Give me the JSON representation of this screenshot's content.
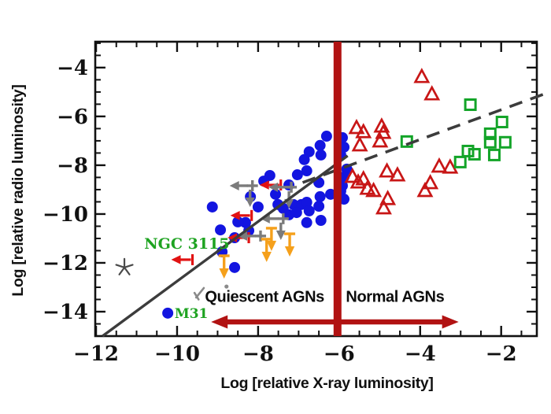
{
  "axes": {
    "x": {
      "label": "Log [relative X-ray luminosity]",
      "range": [
        -12.02,
        -1.12
      ],
      "major_ticks": [
        -12,
        -10,
        -8,
        -6,
        -4,
        -2
      ],
      "minor_step": 0.5
    },
    "y": {
      "label": "Log [relative radio luminosity]",
      "range": [
        -15.0,
        -2.94
      ],
      "major_ticks": [
        -4,
        -6,
        -8,
        -10,
        -12,
        -14
      ],
      "minor_step": 0.5
    }
  },
  "colors": {
    "blue_points": "#1315e0",
    "red_triangles": "#c81616",
    "green_squares": "#13a428",
    "orange_limits": "#f5a01b",
    "gray_limits": "#7b7b7b",
    "fit_line": "#3c3c3c",
    "divider_red": "#b11212",
    "label_green": "#1ea321",
    "star_gray": "#4a4a4a",
    "text_black": "#0d0d0d"
  },
  "chart_data": {
    "type": "scatter",
    "title": "",
    "xlabel": "Log [relative X-ray luminosity]",
    "ylabel": "Log [relative radio luminosity]",
    "xlim": [
      -12.02,
      -1.12
    ],
    "ylim": [
      -15.0,
      -2.94
    ],
    "grid": false,
    "series": [
      {
        "name": "quiescent-nuclei-blue-filled-circles",
        "marker": "circle-filled",
        "color": "#1315e0",
        "points": [
          [
            -6.31,
            -6.81
          ],
          [
            -5.92,
            -6.87
          ],
          [
            -5.88,
            -7.26
          ],
          [
            -6.47,
            -7.19
          ],
          [
            -6.74,
            -7.45
          ],
          [
            -6.45,
            -7.58
          ],
          [
            -6.86,
            -7.77
          ],
          [
            -6.8,
            -8.23
          ],
          [
            -7.03,
            -8.39
          ],
          [
            -7.71,
            -8.42
          ],
          [
            -7.86,
            -8.65
          ],
          [
            -7.24,
            -8.81
          ],
          [
            -6.5,
            -8.71
          ],
          [
            -8.19,
            -9.29
          ],
          [
            -7.57,
            -9.19
          ],
          [
            -7.51,
            -9.61
          ],
          [
            -7.38,
            -9.77
          ],
          [
            -7.13,
            -9.61
          ],
          [
            -6.93,
            -9.61
          ],
          [
            -6.8,
            -9.52
          ],
          [
            -6.47,
            -9.29
          ],
          [
            -6.21,
            -9.19
          ],
          [
            -5.96,
            -9.06
          ],
          [
            -5.88,
            -9.39
          ],
          [
            -6.74,
            -9.87
          ],
          [
            -7.05,
            -9.94
          ],
          [
            -7.24,
            -10.03
          ],
          [
            -8.31,
            -10.35
          ],
          [
            -6.8,
            -10.35
          ],
          [
            -9.13,
            -9.71
          ],
          [
            -8.0,
            -9.71
          ],
          [
            -8.5,
            -10.32
          ],
          [
            -8.23,
            -10.68
          ],
          [
            -8.93,
            -10.65
          ],
          [
            -8.58,
            -10.97
          ],
          [
            -8.89,
            -11.55
          ],
          [
            -6.5,
            -9.68
          ],
          [
            -6.45,
            -10.26
          ],
          [
            -8.58,
            -12.19
          ],
          [
            -5.96,
            -7.58
          ],
          [
            -5.81,
            -8.16
          ],
          [
            -5.88,
            -8.48
          ],
          [
            -5.92,
            -8.84
          ],
          [
            -10.23,
            -14.06
          ]
        ]
      },
      {
        "name": "normal-agn-red-open-triangles",
        "marker": "triangle-open",
        "color": "#c81616",
        "points": [
          [
            -3.96,
            -4.39
          ],
          [
            -3.71,
            -5.1
          ],
          [
            -5.57,
            -6.48
          ],
          [
            -5.4,
            -6.65
          ],
          [
            -5.49,
            -7.19
          ],
          [
            -4.95,
            -6.42
          ],
          [
            -4.91,
            -6.68
          ],
          [
            -4.99,
            -7.03
          ],
          [
            -5.67,
            -8.48
          ],
          [
            -5.53,
            -8.71
          ],
          [
            -5.4,
            -8.58
          ],
          [
            -5.3,
            -8.97
          ],
          [
            -5.15,
            -9.06
          ],
          [
            -4.82,
            -8.26
          ],
          [
            -4.56,
            -8.42
          ],
          [
            -4.8,
            -9.39
          ],
          [
            -4.9,
            -9.77
          ],
          [
            -3.53,
            -8.06
          ],
          [
            -3.75,
            -8.74
          ],
          [
            -3.88,
            -9.06
          ],
          [
            -3.26,
            -8.1
          ]
        ]
      },
      {
        "name": "agn-green-open-squares",
        "marker": "square-open",
        "color": "#13a428",
        "points": [
          [
            -4.33,
            -7.03
          ],
          [
            -2.76,
            -5.52
          ],
          [
            -1.98,
            -6.23
          ],
          [
            -2.27,
            -6.71
          ],
          [
            -2.27,
            -7.06
          ],
          [
            -1.9,
            -7.06
          ],
          [
            -2.82,
            -7.42
          ],
          [
            -2.66,
            -7.55
          ],
          [
            -2.17,
            -7.58
          ],
          [
            -3.01,
            -7.87
          ]
        ]
      },
      {
        "name": "star-marker",
        "marker": "star-open",
        "color": "#4a4a4a",
        "points": [
          [
            -11.3,
            -12.19
          ]
        ]
      }
    ],
    "upper_limits": {
      "red_xray_limits_left_arrow_bar": [
        [
          -9.62,
          -11.87
        ],
        [
          -8.16,
          -10.06
        ],
        [
          -8.23,
          -10.97
        ],
        [
          -7.44,
          -8.81
        ]
      ],
      "gray_limits_plus": [
        {
          "pos": [
            -8.14,
            -8.84
          ],
          "directions": [
            "left",
            "down"
          ]
        },
        {
          "pos": [
            -7.18,
            -8.9
          ],
          "directions": [
            "left",
            "down"
          ]
        },
        {
          "pos": [
            -7.38,
            -10.19
          ],
          "directions": [
            "left",
            "down"
          ]
        },
        {
          "pos": [
            -7.94,
            -10.9
          ],
          "directions": [
            "left"
          ]
        }
      ],
      "orange_radio_limits_down_arrow": [
        [
          -8.84,
          -11.71
        ],
        [
          -7.67,
          -10.58
        ],
        [
          -7.79,
          -11.03
        ],
        [
          -7.22,
          -10.81
        ]
      ]
    },
    "lines": {
      "solid_fit_line": {
        "from": [
          -11.84,
          -15.0
        ],
        "to": [
          -5.79,
          -7.61
        ],
        "style": "solid",
        "color": "#3c3c3c"
      },
      "dashed_fundamental_plane_line": {
        "from": [
          -6.9,
          -8.71
        ],
        "to": [
          -0.85,
          -5.03
        ],
        "style": "dashed",
        "color": "#3c3c3c"
      }
    },
    "divider_line": {
      "x": -6.04,
      "color": "#b11212"
    },
    "region_arrow": {
      "y": -14.42,
      "x1": -9.16,
      "x2": -3.05,
      "color": "#b11212"
    },
    "annotations": [
      {
        "id": "quiescent",
        "text": "Quiescent AGNs",
        "x": -7.84,
        "y": -13.6,
        "color": "#0d0d0d",
        "style": "region-label",
        "anchor": "middle"
      },
      {
        "id": "normal",
        "text": "Normal AGNs",
        "x": -4.62,
        "y": -13.6,
        "color": "#0d0d0d",
        "style": "region-label",
        "anchor": "middle"
      },
      {
        "id": "ngc3115",
        "text": "NGC 3115",
        "x": -10.81,
        "y": -11.42,
        "color": "#1ea321",
        "style": "object-label",
        "size": 19,
        "anchor": "start"
      },
      {
        "id": "m31",
        "text": "M31",
        "x": -10.06,
        "y": -14.26,
        "color": "#1ea321",
        "style": "object-label",
        "size": 17,
        "anchor": "start"
      }
    ],
    "stray_marks": {
      "gray_segments": [
        [
          [
            -9.53,
            -13.42
          ],
          [
            -9.34,
            -13.03
          ]
        ],
        [
          [
            -9.57,
            -13.23
          ],
          [
            -9.47,
            -13.5
          ]
        ]
      ],
      "gray_dot": [
        -8.78,
        -12.97
      ]
    }
  }
}
